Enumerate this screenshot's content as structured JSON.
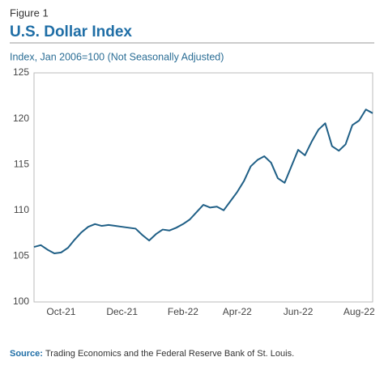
{
  "figure_label": "Figure 1",
  "chart_data": {
    "type": "line",
    "title": "U.S. Dollar Index",
    "subtitle": "Index, Jan 2006=100 (Not Seasonally Adjusted)",
    "categories": [
      null,
      null,
      null,
      null,
      "Oct-21",
      null,
      null,
      null,
      null,
      null,
      null,
      null,
      null,
      "Dec-21",
      null,
      null,
      null,
      null,
      null,
      null,
      null,
      null,
      "Feb-22",
      null,
      null,
      null,
      null,
      null,
      null,
      null,
      "Apr-22",
      null,
      null,
      null,
      null,
      null,
      null,
      null,
      null,
      "Jun-22",
      null,
      null,
      null,
      null,
      null,
      null,
      null,
      null,
      "Aug-22",
      null,
      null
    ],
    "values": [
      106.0,
      106.2,
      105.7,
      105.3,
      105.4,
      105.9,
      106.8,
      107.6,
      108.2,
      108.5,
      108.3,
      108.4,
      108.3,
      108.2,
      108.1,
      108.0,
      107.3,
      106.7,
      107.4,
      107.9,
      107.8,
      108.1,
      108.5,
      109.0,
      109.8,
      110.6,
      110.3,
      110.4,
      110.0,
      111.0,
      112.0,
      113.2,
      114.8,
      115.5,
      115.9,
      115.2,
      113.5,
      113.0,
      114.8,
      116.6,
      116.0,
      117.5,
      118.8,
      119.5,
      117.0,
      116.5,
      117.2,
      119.3,
      119.8,
      121.0,
      120.6
    ],
    "color": "#1f5f86",
    "ylim": [
      100,
      125
    ],
    "yticks": [
      100,
      105,
      110,
      115,
      120,
      125
    ],
    "grid": false
  },
  "source": {
    "label": "Source:",
    "text": "Trading Economics and the Federal Reserve Bank of St. Louis."
  }
}
